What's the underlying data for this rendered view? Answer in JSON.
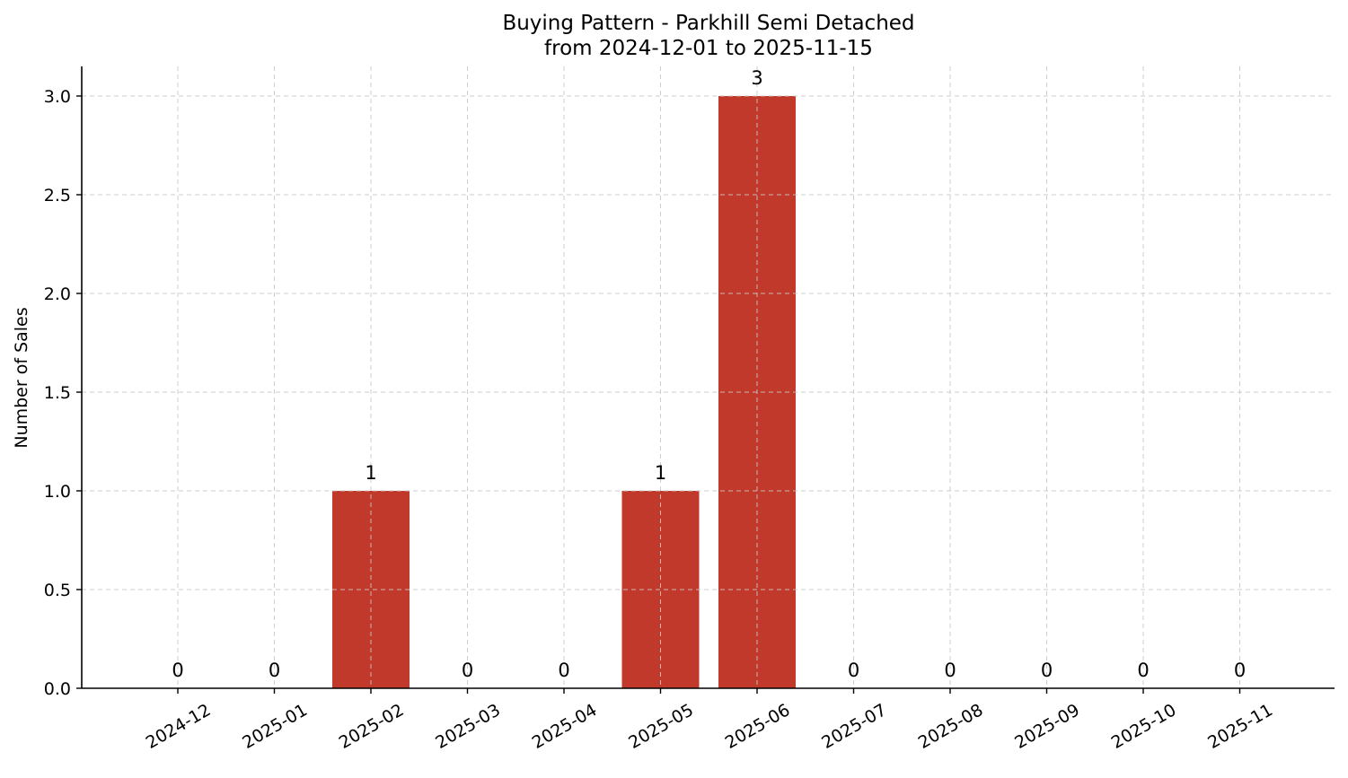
{
  "chart_data": {
    "type": "bar",
    "title": "Buying Pattern - Parkhill Semi Detached",
    "subtitle": "from 2024-12-01 to 2025-11-15",
    "xlabel": "",
    "ylabel": "Number of Sales",
    "categories": [
      "2024-12",
      "2025-01",
      "2025-02",
      "2025-03",
      "2025-04",
      "2025-05",
      "2025-06",
      "2025-07",
      "2025-08",
      "2025-09",
      "2025-10",
      "2025-11"
    ],
    "values": [
      0,
      0,
      1,
      0,
      0,
      1,
      3,
      0,
      0,
      0,
      0,
      0
    ],
    "value_labels": [
      "0",
      "0",
      "1",
      "0",
      "0",
      "1",
      "3",
      "0",
      "0",
      "0",
      "0",
      "0"
    ],
    "ylim": [
      0,
      3.15
    ],
    "yticks": [
      0.0,
      0.5,
      1.0,
      1.5,
      2.0,
      2.5,
      3.0
    ],
    "ytick_labels": [
      "0.0",
      "0.5",
      "1.0",
      "1.5",
      "2.0",
      "2.5",
      "3.0"
    ],
    "grid": true,
    "legend": "none",
    "bar_color": "#c0392b"
  }
}
